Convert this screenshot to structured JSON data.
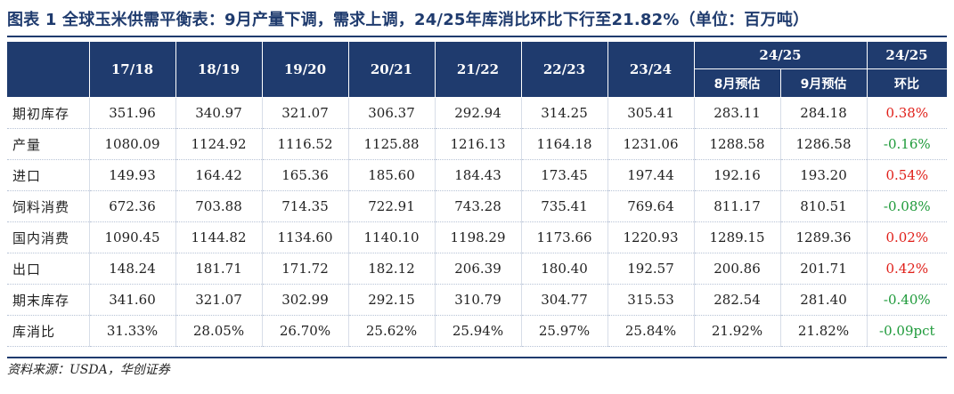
{
  "title": "图表 1   全球玉米供需平衡表：9月产量下调，需求上调，24/25年库消比环比下行至21.82%（单位：百万吨）",
  "header": {
    "years": [
      "17/18",
      "18/19",
      "19/20",
      "20/21",
      "21/22",
      "22/23",
      "23/24"
    ],
    "group_label": "24/25",
    "sub_labels": [
      "8月预估",
      "9月预估"
    ],
    "change_group": "24/25",
    "change_label": "环比"
  },
  "rows": [
    {
      "label": "期初库存",
      "values": [
        "351.96",
        "340.97",
        "321.07",
        "306.37",
        "292.94",
        "314.25",
        "305.41",
        "283.11",
        "284.18"
      ],
      "change": "0.38%"
    },
    {
      "label": "产量",
      "values": [
        "1080.09",
        "1124.92",
        "1116.52",
        "1125.88",
        "1216.13",
        "1164.18",
        "1231.06",
        "1288.58",
        "1286.58"
      ],
      "change": "-0.16%"
    },
    {
      "label": "进口",
      "values": [
        "149.93",
        "164.42",
        "165.36",
        "185.60",
        "184.43",
        "173.45",
        "197.44",
        "192.16",
        "193.20"
      ],
      "change": "0.54%"
    },
    {
      "label": "饲料消费",
      "values": [
        "672.36",
        "703.88",
        "714.35",
        "722.91",
        "743.28",
        "735.41",
        "769.64",
        "811.17",
        "810.51"
      ],
      "change": "-0.08%"
    },
    {
      "label": "国内消费",
      "values": [
        "1090.45",
        "1144.82",
        "1134.60",
        "1140.10",
        "1198.29",
        "1173.66",
        "1220.93",
        "1289.15",
        "1289.36"
      ],
      "change": "0.02%"
    },
    {
      "label": "出口",
      "values": [
        "148.24",
        "181.71",
        "171.72",
        "182.12",
        "206.39",
        "180.40",
        "192.57",
        "200.86",
        "201.71"
      ],
      "change": "0.42%"
    },
    {
      "label": "期末库存",
      "values": [
        "341.60",
        "321.07",
        "302.99",
        "292.15",
        "310.79",
        "304.77",
        "315.53",
        "282.54",
        "281.40"
      ],
      "change": "-0.40%"
    },
    {
      "label": "库消比",
      "values": [
        "31.33%",
        "28.05%",
        "26.70%",
        "25.62%",
        "25.94%",
        "25.97%",
        "25.84%",
        "21.92%",
        "21.82%"
      ],
      "change": "-0.09pct"
    }
  ],
  "colors": {
    "header_bg": "#1f3b6e",
    "positive": "#e0201a",
    "negative": "#1e9a3a"
  },
  "source": "资料来源：USDA，华创证券"
}
